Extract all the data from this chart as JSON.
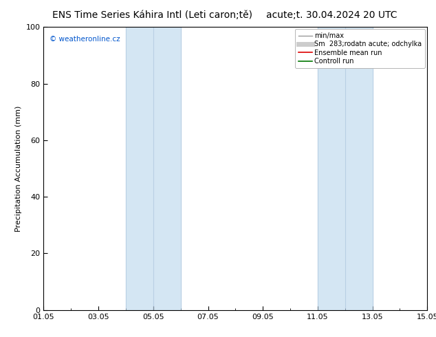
{
  "title_left": "ENS Time Series Káhira Intl (Leti caron;tě)",
  "title_right": "acute;t. 30.04.2024 20 UTC",
  "ylabel": "Precipitation Accumulation (mm)",
  "watermark": "© weatheronline.cz",
  "ylim": [
    0,
    100
  ],
  "yticks": [
    0,
    20,
    40,
    60,
    80,
    100
  ],
  "xtick_labels": [
    "01.05",
    "03.05",
    "05.05",
    "07.05",
    "09.05",
    "11.05",
    "13.05",
    "15.05"
  ],
  "xtick_positions": [
    0,
    2,
    4,
    6,
    8,
    10,
    12,
    14
  ],
  "x_min": 0,
  "x_max": 14,
  "shaded_bands": [
    {
      "x_start": 3,
      "x_end": 5
    },
    {
      "x_start": 10,
      "x_end": 12
    }
  ],
  "shade_color": "#ddeef8",
  "shade_inner_color": "#cce0f0",
  "legend_entries": [
    {
      "label": "min/max",
      "color": "#999999",
      "lw": 1.0,
      "linestyle": "-"
    },
    {
      "label": "Sm  283;rodatn acute; odchylka",
      "color": "#cccccc",
      "lw": 5,
      "linestyle": "-"
    },
    {
      "label": "Ensemble mean run",
      "color": "#dd0000",
      "lw": 1.2,
      "linestyle": "-"
    },
    {
      "label": "Controll run",
      "color": "#007700",
      "lw": 1.2,
      "linestyle": "-"
    }
  ],
  "background_color": "#ffffff",
  "plot_bg_color": "#ffffff",
  "border_color": "#000000",
  "title_fontsize": 10,
  "axis_label_fontsize": 8,
  "tick_fontsize": 8,
  "watermark_color": "#0055cc",
  "watermark_fontsize": 7.5,
  "legend_fontsize": 7
}
